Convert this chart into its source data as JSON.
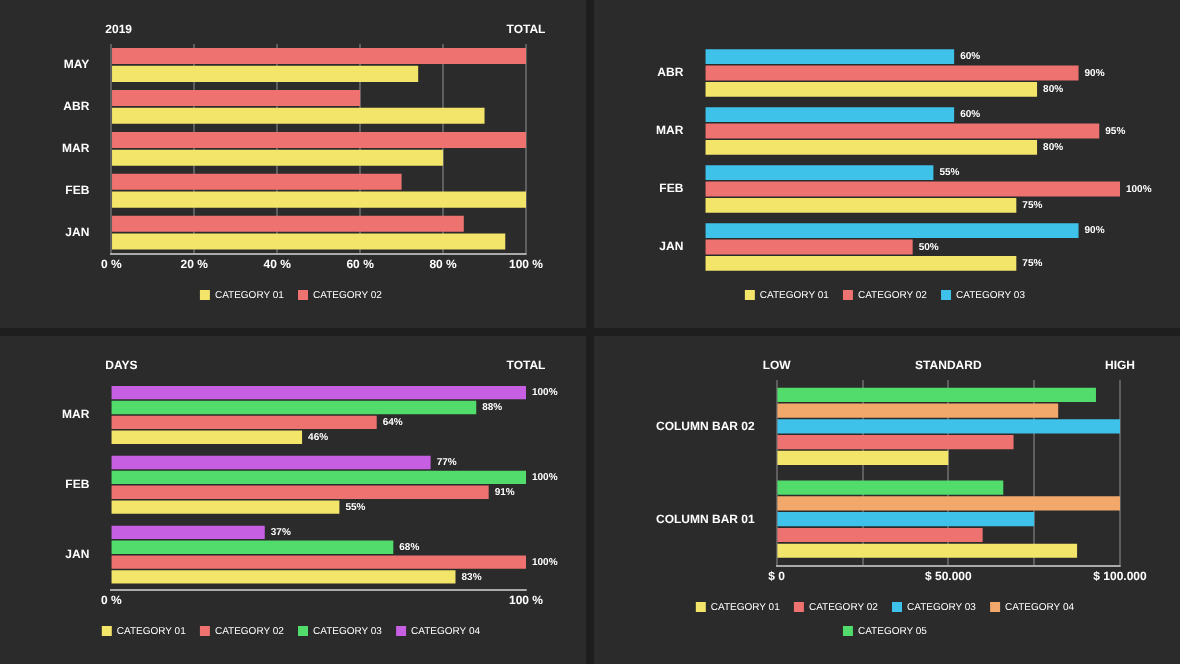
{
  "chart_data": [
    {
      "type": "bar",
      "orientation": "horizontal",
      "ylabel": "2019",
      "categories": [
        "MAY",
        "ABR",
        "MAR",
        "FEB",
        "JAN"
      ],
      "series": [
        {
          "name": "CATEGORY 01",
          "color": "#f3e46a",
          "values": [
            74,
            90,
            80,
            100,
            95
          ]
        },
        {
          "name": "CATEGORY 02",
          "color": "#ee7370",
          "values": [
            100,
            60,
            100,
            70,
            85
          ]
        }
      ],
      "xlim": [
        0,
        100
      ],
      "xticks": [
        {
          "value": 0,
          "label": "0 %"
        },
        {
          "value": 20,
          "label": "20 %"
        },
        {
          "value": 40,
          "label": "40 %"
        },
        {
          "value": 60,
          "label": "60 %"
        },
        {
          "value": 80,
          "label": "80 %"
        },
        {
          "value": 100,
          "label": "100 %"
        }
      ],
      "annotations": [
        "TOTAL"
      ],
      "grid": "x",
      "legend": "bottom"
    },
    {
      "type": "bar",
      "orientation": "horizontal",
      "categories": [
        "ABR",
        "MAR",
        "FEB",
        "JAN"
      ],
      "series": [
        {
          "name": "CATEGORY 01",
          "color": "#f3e46a",
          "values": [
            80,
            80,
            75,
            75
          ],
          "value_labels": [
            "80%",
            "80%",
            "75%",
            "75%"
          ]
        },
        {
          "name": "CATEGORY 02",
          "color": "#ee7370",
          "values": [
            90,
            95,
            100,
            50
          ],
          "value_labels": [
            "90%",
            "95%",
            "100%",
            "50%"
          ]
        },
        {
          "name": "CATEGORY 03",
          "color": "#3ec2ea",
          "values": [
            60,
            60,
            55,
            90
          ],
          "value_labels": [
            "60%",
            "60%",
            "55%",
            "90%"
          ]
        }
      ],
      "xlim": [
        0,
        100
      ],
      "tick_labels": "y",
      "legend": "bottom"
    },
    {
      "type": "bar",
      "orientation": "horizontal",
      "ylabel": "DAYS",
      "categories": [
        "MAR",
        "FEB",
        "JAN"
      ],
      "series": [
        {
          "name": "CATEGORY 01",
          "color": "#f3e46a",
          "values": [
            46,
            55,
            83
          ],
          "value_labels": [
            "46%",
            "55%",
            "83%"
          ]
        },
        {
          "name": "CATEGORY 02",
          "color": "#ee7370",
          "values": [
            64,
            91,
            100
          ],
          "value_labels": [
            "64%",
            "91%",
            "100%"
          ]
        },
        {
          "name": "CATEGORY 03",
          "color": "#52dc6c",
          "values": [
            88,
            100,
            68
          ],
          "value_labels": [
            "88%",
            "100%",
            "68%"
          ]
        },
        {
          "name": "CATEGORY 04",
          "color": "#c65fe2",
          "values": [
            100,
            77,
            37
          ],
          "value_labels": [
            "100%",
            "77%",
            "37%"
          ]
        }
      ],
      "xlim": [
        0,
        100
      ],
      "xticks": [
        {
          "value": 0,
          "label": "0 %"
        },
        {
          "value": 100,
          "label": "100 %"
        }
      ],
      "annotations": [
        "TOTAL"
      ],
      "legend": "bottom"
    },
    {
      "type": "bar",
      "orientation": "horizontal",
      "categories": [
        "COLUMN BAR 02",
        "COLUMN BAR 01"
      ],
      "series": [
        {
          "name": "CATEGORY 01",
          "color": "#f3e46a",
          "values": [
            50000,
            87500
          ]
        },
        {
          "name": "CATEGORY 02",
          "color": "#ee7370",
          "values": [
            69000,
            60000
          ]
        },
        {
          "name": "CATEGORY 03",
          "color": "#3ec2ea",
          "values": [
            100000,
            75000
          ]
        },
        {
          "name": "CATEGORY 04",
          "color": "#f2a86a",
          "values": [
            82000,
            100000
          ]
        },
        {
          "name": "CATEGORY 05",
          "color": "#52dc6c",
          "values": [
            93000,
            66000
          ]
        }
      ],
      "xlim": [
        0,
        100000
      ],
      "xticks": [
        {
          "value": 0,
          "label": "$ 0"
        },
        {
          "value": 25000,
          "label": null
        },
        {
          "value": 50000,
          "label": "$ 50.000"
        },
        {
          "value": 75000,
          "label": null
        },
        {
          "value": 100000,
          "label": "$ 100.000"
        }
      ],
      "annotations": [
        "LOW",
        "STANDARD",
        "HIGH"
      ],
      "grid": "x",
      "legend": "bottom"
    }
  ]
}
